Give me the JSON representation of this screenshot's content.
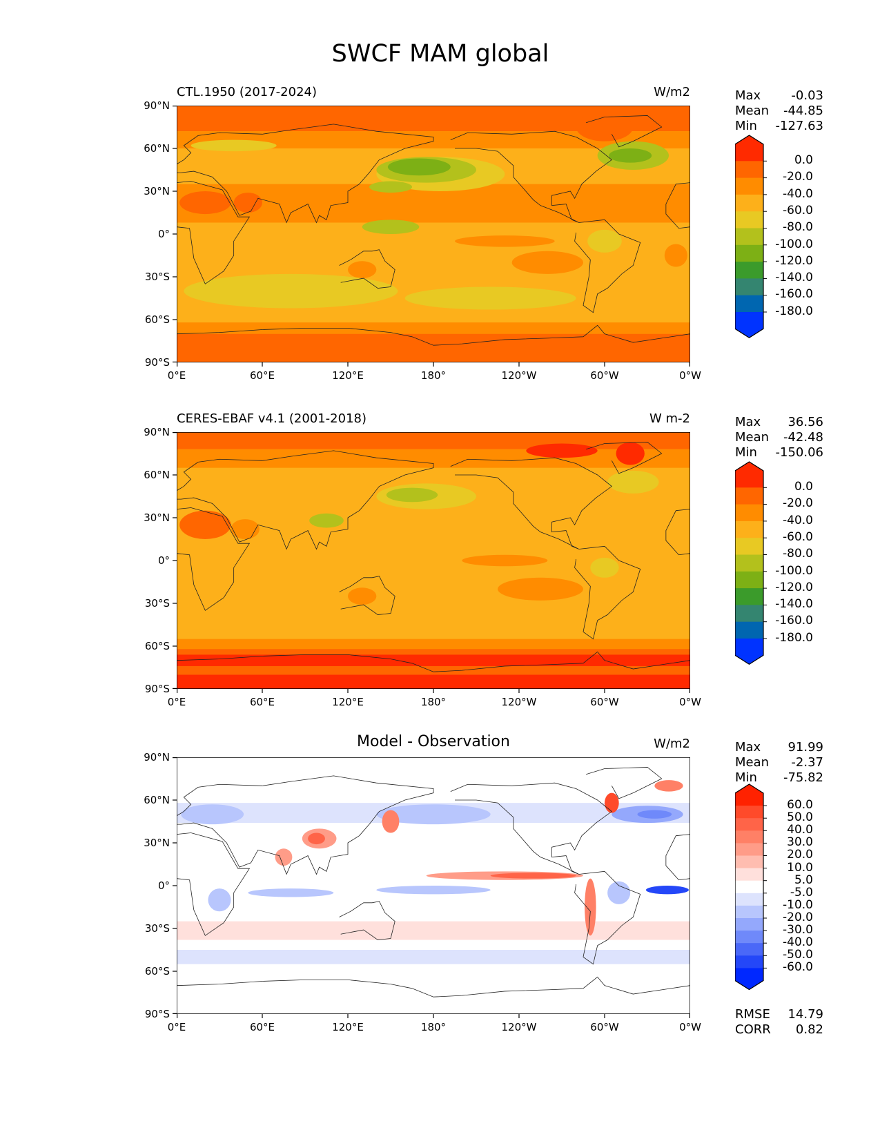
{
  "figure": {
    "title": "SWCF MAM global"
  },
  "chart_data": [
    {
      "type": "heatmap",
      "title": "CTL.1950 (2017-2024)",
      "units": "W/m2",
      "stats": {
        "max_label": "Max",
        "max": "-0.03",
        "mean_label": "Mean",
        "mean": "-44.85",
        "min_label": "Min",
        "min": "-127.63"
      },
      "x_ticks": [
        "0°E",
        "60°E",
        "120°E",
        "180°",
        "120°W",
        "60°W",
        "0°W"
      ],
      "y_ticks": [
        "90°N",
        "60°N",
        "30°N",
        "0°",
        "30°S",
        "60°S",
        "90°S"
      ],
      "colorbar": {
        "levels": [
          "0.0",
          "-20.0",
          "-40.0",
          "-60.0",
          "-80.0",
          "-100.0",
          "-120.0",
          "-140.0",
          "-160.0",
          "-180.0"
        ],
        "colors": [
          "#ff2a00",
          "#ff6600",
          "#ff8c00",
          "#fdb01a",
          "#e8c923",
          "#b3c11c",
          "#7db015",
          "#3b9b2b",
          "#348570",
          "#0066b0",
          "#0033ff"
        ],
        "extend": "both"
      }
    },
    {
      "type": "heatmap",
      "title": "CERES-EBAF v4.1 (2001-2018)",
      "units": "W m-2",
      "stats": {
        "max_label": "Max",
        "max": "36.56",
        "mean_label": "Mean",
        "mean": "-42.48",
        "min_label": "Min",
        "min": "-150.06"
      },
      "x_ticks": [
        "0°E",
        "60°E",
        "120°E",
        "180°",
        "120°W",
        "60°W",
        "0°W"
      ],
      "y_ticks": [
        "90°N",
        "60°N",
        "30°N",
        "0°",
        "30°S",
        "60°S",
        "90°S"
      ],
      "colorbar": {
        "levels": [
          "0.0",
          "-20.0",
          "-40.0",
          "-60.0",
          "-80.0",
          "-100.0",
          "-120.0",
          "-140.0",
          "-160.0",
          "-180.0"
        ],
        "colors": [
          "#ff2a00",
          "#ff6600",
          "#ff8c00",
          "#fdb01a",
          "#e8c923",
          "#b3c11c",
          "#7db015",
          "#3b9b2b",
          "#348570",
          "#0066b0",
          "#0033ff"
        ],
        "extend": "both"
      }
    },
    {
      "type": "heatmap",
      "title": "Model - Observation",
      "units": "W/m2",
      "stats": {
        "max_label": "Max",
        "max": "91.99",
        "mean_label": "Mean",
        "mean": "-2.37",
        "min_label": "Min",
        "min": "-75.82"
      },
      "extra": {
        "rmse_label": "RMSE",
        "rmse": "14.79",
        "corr_label": "CORR",
        "corr": "0.82"
      },
      "x_ticks": [
        "0°E",
        "60°E",
        "120°E",
        "180°",
        "120°W",
        "60°W",
        "0°W"
      ],
      "y_ticks": [
        "90°N",
        "60°N",
        "30°N",
        "0°",
        "30°S",
        "60°S",
        "90°S"
      ],
      "colorbar": {
        "levels": [
          "60.0",
          "50.0",
          "40.0",
          "30.0",
          "20.0",
          "10.0",
          "5.0",
          "-5.0",
          "-10.0",
          "-20.0",
          "-30.0",
          "-40.0",
          "-50.0",
          "-60.0"
        ],
        "colors": [
          "#ff2200",
          "#ff4a2a",
          "#ff6448",
          "#ff8066",
          "#ff9c88",
          "#ffbdb0",
          "#ffe0dc",
          "#ffffff",
          "#dde3fd",
          "#b8c6fd",
          "#94a8fc",
          "#6f89fa",
          "#4a68f8",
          "#2447f8",
          "#0028ff"
        ],
        "extend": "both"
      }
    }
  ]
}
